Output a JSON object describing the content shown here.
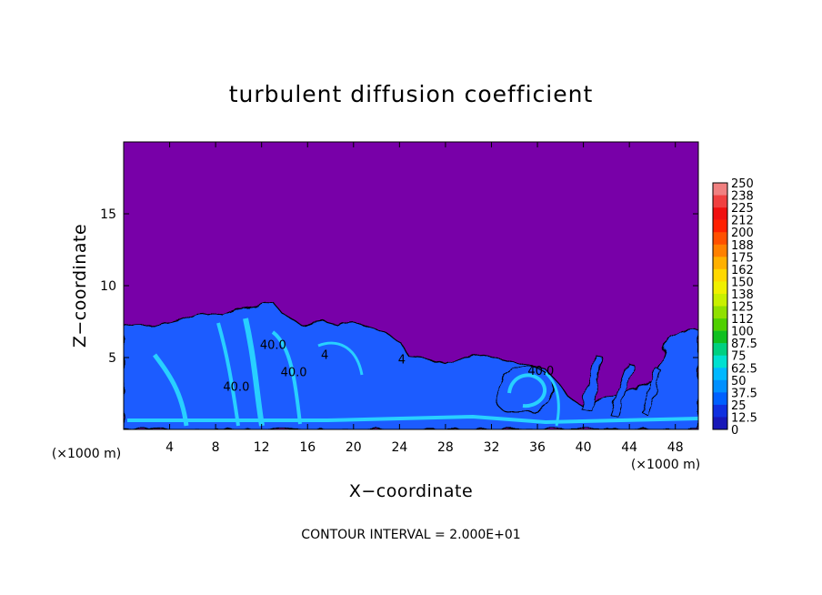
{
  "chart_data": {
    "type": "heatmap",
    "title": "turbulent diffusion coefficient",
    "xlabel": "X−coordinate",
    "ylabel": "Z−coordinate",
    "x_unit": "(×1000 m)",
    "y_unit": "(×1000 m)",
    "xlim": [
      0,
      50
    ],
    "ylim": [
      0,
      20
    ],
    "x_ticks": [
      "4",
      "8",
      "12",
      "16",
      "20",
      "24",
      "28",
      "32",
      "36",
      "40",
      "44",
      "48"
    ],
    "x_tick_values": [
      4,
      8,
      12,
      16,
      20,
      24,
      28,
      32,
      36,
      40,
      44,
      48
    ],
    "y_ticks": [
      "5",
      "10",
      "15"
    ],
    "y_tick_values": [
      5,
      10,
      15
    ],
    "footer": "CONTOUR INTERVAL = 2.000E+01",
    "contour_labels": [
      {
        "text": "40.0",
        "x": 13,
        "z": 5.6
      },
      {
        "text": "40.0",
        "x": 14.8,
        "z": 3.7
      },
      {
        "text": "40.0",
        "x": 9.8,
        "z": 2.7
      },
      {
        "text": "40.0",
        "x": 36.3,
        "z": 3.8
      },
      {
        "text": "4",
        "x": 24.2,
        "z": 4.6
      },
      {
        "text": "4",
        "x": 17.5,
        "z": 4.9
      }
    ],
    "colorbar": {
      "labels": [
        "250",
        "238",
        "225",
        "212",
        "200",
        "188",
        "175",
        "162",
        "150",
        "138",
        "125",
        "112",
        "100",
        "87.5",
        "75",
        "62.5",
        "50",
        "37.5",
        "25",
        "12.5",
        "0"
      ],
      "values": [
        250,
        237.5,
        225,
        212.5,
        200,
        187.5,
        175,
        162.5,
        150,
        137.5,
        125,
        112.5,
        100,
        87.5,
        75,
        62.5,
        50,
        37.5,
        25,
        12.5,
        0
      ],
      "colors": [
        "#f08080",
        "#f04040",
        "#f01010",
        "#ff2000",
        "#ff5000",
        "#ff8000",
        "#ffb000",
        "#ffd800",
        "#f0f000",
        "#c8f000",
        "#90e000",
        "#50d000",
        "#10c020",
        "#00d080",
        "#00e0d0",
        "#00b8ff",
        "#0090ff",
        "#0060ff",
        "#1030e0",
        "#1818b8",
        "#7800a8"
      ]
    },
    "colors": {
      "background_field": "#7800a8",
      "turbulent_layer": "#1a5cff",
      "high_values": "#28d0ff",
      "contour_line": "#000000"
    }
  }
}
